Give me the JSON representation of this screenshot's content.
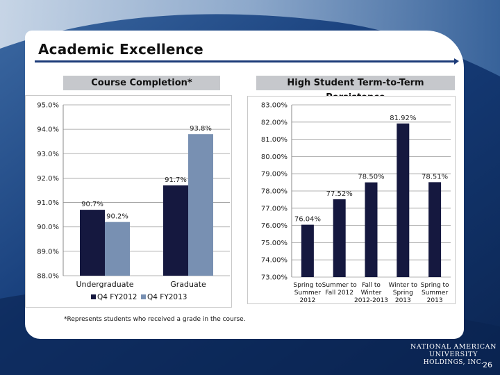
{
  "slide": {
    "title": "Academic Excellence",
    "footnote": "*Represents students who received a grade in the course.",
    "logo_line1": "NATIONAL AMERICAN UNIVERSITY",
    "logo_line2": "HOLDINGS, INC.",
    "page_number": "26"
  },
  "colors": {
    "background": "#0f2f63",
    "q4_fy2012": "#15183f",
    "q4_fy2013": "#7890b2",
    "persistence_bars": "#15183f",
    "header_band": "#c6c8cc"
  },
  "chart_data": [
    {
      "type": "bar",
      "title": "Course Completion*",
      "categories": [
        "Undergraduate",
        "Graduate"
      ],
      "series": [
        {
          "name": "Q4 FY2012",
          "values": [
            90.7,
            91.7
          ],
          "labels": [
            "90.7%",
            "91.7%"
          ]
        },
        {
          "name": "Q4 FY2013",
          "values": [
            90.2,
            93.8
          ],
          "labels": [
            "90.2%",
            "93.8%"
          ]
        }
      ],
      "ylim": [
        88.0,
        95.0
      ],
      "yticks": [
        88.0,
        89.0,
        90.0,
        91.0,
        92.0,
        93.0,
        94.0,
        95.0
      ],
      "ytick_labels": [
        "88.0%",
        "89.0%",
        "90.0%",
        "91.0%",
        "92.0%",
        "93.0%",
        "94.0%",
        "95.0%"
      ],
      "grid": true,
      "legend": "bottom"
    },
    {
      "type": "bar",
      "title": "High Student Term-to-Term Persistence",
      "categories": [
        [
          "Spring to",
          "Summer",
          "2012"
        ],
        [
          "Summer to",
          "Fall 2012"
        ],
        [
          "Fall to",
          "Winter",
          "2012-2013"
        ],
        [
          "Winter to",
          "Spring",
          "2013"
        ],
        [
          "Spring to",
          "Summer",
          "2013"
        ]
      ],
      "values": [
        76.04,
        77.52,
        78.5,
        81.92,
        78.51
      ],
      "labels": [
        "76.04%",
        "77.52%",
        "78.50%",
        "81.92%",
        "78.51%"
      ],
      "ylim": [
        73.0,
        83.0
      ],
      "yticks": [
        73,
        74,
        75,
        76,
        77,
        78,
        79,
        80,
        81,
        82,
        83
      ],
      "ytick_labels": [
        "73.00%",
        "74.00%",
        "75.00%",
        "76.00%",
        "77.00%",
        "78.00%",
        "79.00%",
        "80.00%",
        "81.00%",
        "82.00%",
        "83.00%"
      ],
      "grid": true
    }
  ]
}
